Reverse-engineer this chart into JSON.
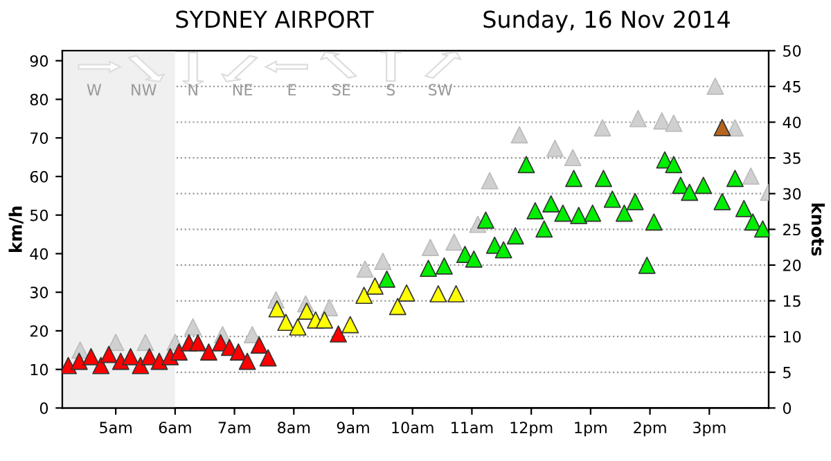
{
  "chart_data": {
    "type": "scatter",
    "title": "SYDNEY AIRPORT",
    "subtitle": "Sunday, 16 Nov 2014",
    "ylabel": "km/h",
    "y2label": "knots",
    "annotations": [
      "W",
      "NW",
      "N",
      "NE",
      "E",
      "SE",
      "S",
      "SW"
    ],
    "xlim": [
      "2014-11-16T04:06",
      "2014-11-16T16:00"
    ],
    "xticks": [
      {
        "value": "2014-11-16T05:00",
        "label": "5am"
      },
      {
        "value": "2014-11-16T06:00",
        "label": "6am"
      },
      {
        "value": "2014-11-16T07:00",
        "label": "7am"
      },
      {
        "value": "2014-11-16T08:00",
        "label": "8am"
      },
      {
        "value": "2014-11-16T09:00",
        "label": "9am"
      },
      {
        "value": "2014-11-16T10:00",
        "label": "10am"
      },
      {
        "value": "2014-11-16T11:00",
        "label": "11am"
      },
      {
        "value": "2014-11-16T12:00",
        "label": "12pm"
      },
      {
        "value": "2014-11-16T13:00",
        "label": "1pm"
      },
      {
        "value": "2014-11-16T14:00",
        "label": "2pm"
      },
      {
        "value": "2014-11-16T15:00",
        "label": "3pm"
      }
    ],
    "ylim": [
      0,
      92.6
    ],
    "yticks": [
      0,
      10,
      20,
      30,
      40,
      50,
      60,
      70,
      80,
      90
    ],
    "y2lim": [
      0,
      50
    ],
    "y2ticks": [
      0,
      5,
      10,
      15,
      20,
      25,
      30,
      35,
      40,
      45,
      50
    ],
    "grid": "y2",
    "marker": "triangle",
    "legend": false,
    "bands": [
      {
        "axis": "x",
        "from": "2014-11-16T04:06",
        "to": "2014-11-16T06:00",
        "color": "#f0f0f0"
      }
    ],
    "series": [
      {
        "color": "#d0d0d0",
        "x": [
          "2014-11-16T04:24",
          "2014-11-16T05:00",
          "2014-11-16T05:30",
          "2014-11-16T06:00",
          "2014-11-16T06:18",
          "2014-11-16T06:48",
          "2014-11-16T07:18",
          "2014-11-16T07:42",
          "2014-11-16T08:12",
          "2014-11-16T08:36",
          "2014-11-16T09:12",
          "2014-11-16T09:30",
          "2014-11-16T10:18",
          "2014-11-16T10:42",
          "2014-11-16T11:06",
          "2014-11-16T11:18",
          "2014-11-16T11:48",
          "2014-11-16T12:24",
          "2014-11-16T12:42",
          "2014-11-16T13:12",
          "2014-11-16T13:48",
          "2014-11-16T14:12",
          "2014-11-16T14:24",
          "2014-11-16T15:06",
          "2014-11-16T15:26",
          "2014-11-16T15:42",
          "2014-11-16T16:00"
        ],
        "values": [
          15,
          17,
          17,
          17,
          21,
          19,
          19,
          28,
          27,
          26,
          36,
          38,
          41.6,
          43,
          47.6,
          58.9,
          70.8,
          67.3,
          64.9,
          72.6,
          75.0,
          74.4,
          73.8,
          83.4,
          72.6,
          60.1,
          55.9
        ]
      },
      {
        "x": [
          "2014-11-16T04:12",
          "2014-11-16T04:23",
          "2014-11-16T04:35",
          "2014-11-16T04:45",
          "2014-11-16T04:53",
          "2014-11-16T05:05",
          "2014-11-16T05:15",
          "2014-11-16T05:25",
          "2014-11-16T05:34",
          "2014-11-16T05:44",
          "2014-11-16T05:55",
          "2014-11-16T06:04",
          "2014-11-16T06:14",
          "2014-11-16T06:23",
          "2014-11-16T06:34",
          "2014-11-16T06:46",
          "2014-11-16T06:55",
          "2014-11-16T07:04",
          "2014-11-16T07:13",
          "2014-11-16T07:25",
          "2014-11-16T07:34",
          "2014-11-16T07:43",
          "2014-11-16T07:52",
          "2014-11-16T08:04",
          "2014-11-16T08:13",
          "2014-11-16T08:22",
          "2014-11-16T08:31",
          "2014-11-16T08:45",
          "2014-11-16T08:57",
          "2014-11-16T09:11",
          "2014-11-16T09:22",
          "2014-11-16T09:34",
          "2014-11-16T09:45",
          "2014-11-16T09:54",
          "2014-11-16T10:16",
          "2014-11-16T10:26",
          "2014-11-16T10:32",
          "2014-11-16T10:44",
          "2014-11-16T10:53",
          "2014-11-16T11:02",
          "2014-11-16T11:14",
          "2014-11-16T11:23",
          "2014-11-16T11:32",
          "2014-11-16T11:44",
          "2014-11-16T11:55",
          "2014-11-16T12:04",
          "2014-11-16T12:13",
          "2014-11-16T12:20",
          "2014-11-16T12:32",
          "2014-11-16T12:43",
          "2014-11-16T12:48",
          "2014-11-16T13:02",
          "2014-11-16T13:13",
          "2014-11-16T13:22",
          "2014-11-16T13:34",
          "2014-11-16T13:45",
          "2014-11-16T13:57",
          "2014-11-16T14:04",
          "2014-11-16T14:15",
          "2014-11-16T14:24",
          "2014-11-16T14:31",
          "2014-11-16T14:40",
          "2014-11-16T14:54",
          "2014-11-16T15:13",
          "2014-11-16T15:13",
          "2014-11-16T15:26",
          "2014-11-16T15:35",
          "2014-11-16T15:44",
          "2014-11-16T15:54"
        ],
        "values": [
          11.0,
          12.1,
          13.3,
          11.0,
          13.9,
          12.1,
          13.3,
          11.0,
          13.3,
          12.1,
          13.3,
          14.5,
          16.9,
          16.9,
          14.5,
          16.9,
          15.7,
          14.5,
          12.1,
          16.3,
          13.0,
          25.7,
          22.2,
          21.0,
          25.1,
          22.8,
          22.8,
          19.2,
          21.6,
          29.2,
          31.6,
          33.4,
          26.3,
          29.8,
          36.2,
          29.6,
          36.8,
          29.6,
          39.8,
          38.6,
          48.7,
          42.2,
          41.0,
          44.6,
          63.1,
          51.1,
          46.4,
          52.9,
          50.5,
          59.5,
          49.9,
          50.5,
          59.5,
          54.1,
          50.5,
          53.5,
          37.0,
          48.2,
          64.3,
          63.1,
          57.7,
          55.9,
          57.7,
          72.7,
          53.5,
          59.5,
          51.7,
          48.2,
          46.4
        ],
        "colors": [
          "#ff0000",
          "#ff0000",
          "#ff0000",
          "#ff0000",
          "#ff0000",
          "#ff0000",
          "#ff0000",
          "#ff0000",
          "#ff0000",
          "#ff0000",
          "#ff0000",
          "#ff0000",
          "#ff0000",
          "#ff0000",
          "#ff0000",
          "#ff0000",
          "#ff0000",
          "#ff0000",
          "#ff0000",
          "#ff0000",
          "#ff0000",
          "#ffff00",
          "#ffff00",
          "#ffff00",
          "#ffff00",
          "#ffff00",
          "#ffff00",
          "#ff0000",
          "#ffff00",
          "#ffff00",
          "#ffff00",
          "#00ee00",
          "#ffff00",
          "#ffff00",
          "#00ee00",
          "#ffff00",
          "#00ee00",
          "#ffff00",
          "#00ee00",
          "#00ee00",
          "#00ee00",
          "#00ee00",
          "#00ee00",
          "#00ee00",
          "#00ee00",
          "#00ee00",
          "#00ee00",
          "#00ee00",
          "#00ee00",
          "#00ee00",
          "#00ee00",
          "#00ee00",
          "#00ee00",
          "#00ee00",
          "#00ee00",
          "#00ee00",
          "#00ee00",
          "#00ee00",
          "#00ee00",
          "#00ee00",
          "#00ee00",
          "#00ee00",
          "#00ee00",
          "#b5651d",
          "#00ee00",
          "#00ee00",
          "#00ee00",
          "#00ee00",
          "#00ee00"
        ]
      }
    ]
  }
}
